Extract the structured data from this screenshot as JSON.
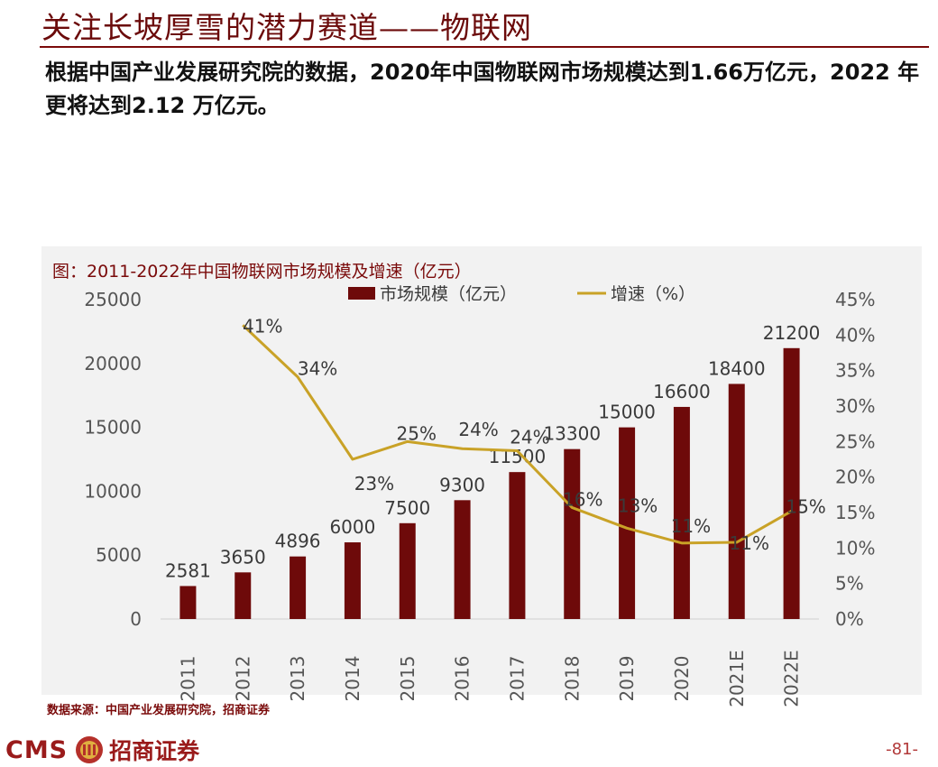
{
  "page": {
    "title": "关注长坡厚雪的潜力赛道——物联网",
    "lead": "根据中国产业发展研究院的数据，2020年中国物联网市场规模达到1.66万亿元，2022 年更将达到2.12 万亿元。",
    "source": "数据来源：中国产业发展研究院，招商证券",
    "logo_latin": "CMS",
    "logo_chinese": "招商证券",
    "page_number": "-81-"
  },
  "colors": {
    "title": "#6b0a0a",
    "bar": "#6e0a0a",
    "line": "#c9a227",
    "chart_bg": "#f2f2f2",
    "caption": "#7a0a0a"
  },
  "chart_data": {
    "type": "bar",
    "title": "图：2011-2022年中国物联网市场规模及增速（亿元）",
    "categories": [
      "2011",
      "2012",
      "2013",
      "2014",
      "2015",
      "2016",
      "2017",
      "2018",
      "2019",
      "2020",
      "2021E",
      "2022E"
    ],
    "series": [
      {
        "name": "市场规模（亿元）",
        "type": "bar",
        "axis": "left",
        "values": [
          2581,
          3650,
          4896,
          6000,
          7500,
          9300,
          11500,
          13300,
          15000,
          16600,
          18400,
          21200
        ],
        "labels": [
          "2581",
          "3650",
          "4896",
          "6000",
          "7500",
          "9300",
          "11500",
          "13300",
          "15000",
          "16600",
          "18400",
          "21200"
        ]
      },
      {
        "name": "增速（%）",
        "type": "line",
        "axis": "right",
        "values": [
          null,
          41.4,
          34.1,
          22.5,
          25.0,
          24.0,
          23.7,
          15.7,
          12.8,
          10.7,
          10.8,
          15.2
        ],
        "labels": [
          null,
          "41%",
          "34%",
          "23%",
          "25%",
          "24%",
          "24%",
          "16%",
          "13%",
          "11%",
          "11%",
          "15%"
        ]
      }
    ],
    "y_left": {
      "min": 0,
      "max": 25000,
      "ticks": [
        "0",
        "5000",
        "10000",
        "15000",
        "20000",
        "25000"
      ]
    },
    "y_right": {
      "min": 0,
      "max": 45,
      "ticks": [
        "0%",
        "5%",
        "10%",
        "15%",
        "20%",
        "25%",
        "30%",
        "35%",
        "40%",
        "45%"
      ]
    },
    "legend": "top-center",
    "grid": false
  }
}
